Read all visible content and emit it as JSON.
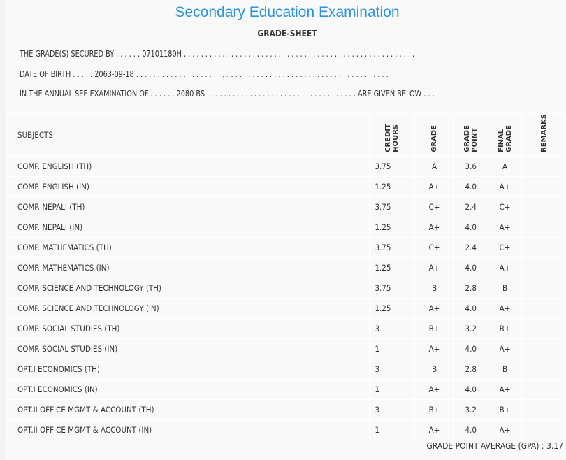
{
  "title": "Secondary Education Examination",
  "subtitle": "GRADE-SHEET",
  "lines": [
    "THE GRADE(S) SECURED BY . . . . . . 07101180H . . . . . . . . . . . . . . . . . . . . . . . . . . . . . . . . . . . . . . . . . . . . . . . . . . . . . .",
    "DATE OF BIRTH . . . . . 2063-09-18 . . . . . . . . . . . . . . . . . . . . . . . . . . . . . . . . . . . . . . . . . . . . . . . . . . . . . . . . . . .",
    "IN THE ANNUAL SEE EXAMINATION OF . . . . . . 2080 BS . . . . . . . . . . . . . . . . . . . . . . . . . . . . . . . . . . . ARE GIVEN BELOW . . ."
  ],
  "headers": {
    "subjects": "SUBJECTS",
    "credit_hours": "CREDIT HOURS",
    "grade": "GRADE",
    "grade_point": "GRADE POINT",
    "final_grade": "FINAL GRADE",
    "remarks": "REMARKS"
  },
  "rows": [
    [
      "COMP. ENGLISH (TH)",
      "3.75",
      "A",
      "3.6",
      "A"
    ],
    [
      "COMP. ENGLISH (IN)",
      "1.25",
      "A+",
      "4.0",
      "A+"
    ],
    [
      "COMP. NEPALI (TH)",
      "3.75",
      "C+",
      "2.4",
      "C+"
    ],
    [
      "COMP. NEPALI (IN)",
      "1.25",
      "A+",
      "4.0",
      "A+"
    ],
    [
      "COMP. MATHEMATICS (TH)",
      "3.75",
      "C+",
      "2.4",
      "C+"
    ],
    [
      "COMP. MATHEMATICS (IN)",
      "1.25",
      "A+",
      "4.0",
      "A+"
    ],
    [
      "COMP. SCIENCE AND TECHNOLOGY (TH)",
      "3.75",
      "B",
      "2.8",
      "B"
    ],
    [
      "COMP. SCIENCE AND TECHNOLOGY (IN)",
      "1.25",
      "A+",
      "4.0",
      "A+"
    ],
    [
      "COMP. SOCIAL STUDIES (TH)",
      "3",
      "B+",
      "3.2",
      "B+"
    ],
    [
      "COMP. SOCIAL STUDIES (IN)",
      "1",
      "A+",
      "4.0",
      "A+"
    ],
    [
      "OPT.I ECONOMICS (TH)",
      "3",
      "B",
      "2.8",
      "B"
    ],
    [
      "OPT.I ECONOMICS (IN)",
      "1",
      "A+",
      "4.0",
      "A+"
    ],
    [
      "OPT.II OFFICE MGMT & ACCOUNT (TH)",
      "3",
      "B+",
      "3.2",
      "B+"
    ],
    [
      "OPT.II OFFICE MGMT & ACCOUNT (IN)",
      "1",
      "A+",
      "4.0",
      "A+"
    ]
  ],
  "gpa": "GRADE POINT AVERAGE (GPA) : 3.17",
  "colors": {
    "title": "#2b93e0",
    "background": "#f9f9f9"
  }
}
